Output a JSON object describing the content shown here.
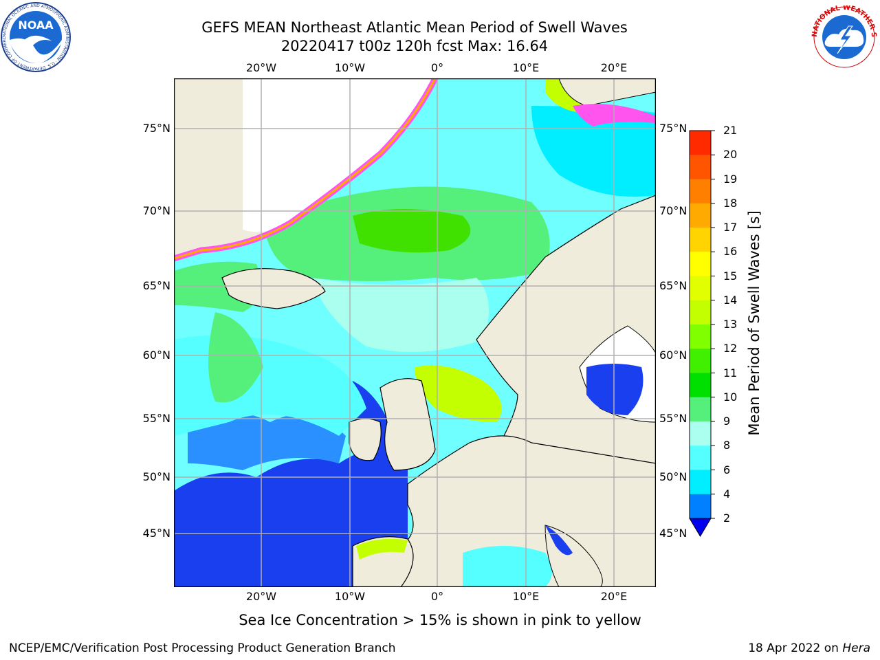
{
  "header": {
    "title_line1": "GEFS MEAN Northeast Atlantic Mean Period of Swell Waves",
    "title_line2": "20220417 t00z 120h fcst   Max: 16.64"
  },
  "logos": {
    "noaa_text": "NOAA",
    "noaa_ring_text": "NATIONAL OCEANIC AND ATMOSPHERIC ADMINISTRATION · U.S. DEPARTMENT OF COMMERCE",
    "nws_ring_text": "NATIONAL WEATHER SERVICE"
  },
  "map": {
    "lon_ticks": [
      "20°W",
      "10°W",
      "0°",
      "10°E",
      "20°E"
    ],
    "lat_ticks": [
      "75°N",
      "70°N",
      "65°N",
      "60°N",
      "55°N",
      "50°N",
      "45°N"
    ],
    "colors": {
      "land": "#efecdc",
      "ice": "#ff55ee",
      "grid": "#b0b0b0"
    }
  },
  "colorbar": {
    "title": "Mean Period of Swell Waves [s]",
    "labels": [
      "21",
      "20",
      "19",
      "18",
      "17",
      "16",
      "15",
      "14",
      "13",
      "12",
      "11",
      "10",
      "9",
      "8",
      "6",
      "4",
      "2"
    ],
    "colors": [
      "#ff0000",
      "#ff2a00",
      "#ff5500",
      "#ff8000",
      "#ffaa00",
      "#ffd400",
      "#ffff00",
      "#e1ff00",
      "#c3ff00",
      "#80ff00",
      "#40f000",
      "#00e000",
      "#55f07c",
      "#aaffee",
      "#55ffff",
      "#00eeff",
      "#0080ff"
    ],
    "extend_color": "#0000ee"
  },
  "note": "Sea Ice Concentration > 15% is shown in pink to yellow",
  "footer": {
    "left": "NCEP/EMC/Verification Post Processing Product Generation Branch",
    "date": "18 Apr 2022 on ",
    "machine": "Hera"
  }
}
